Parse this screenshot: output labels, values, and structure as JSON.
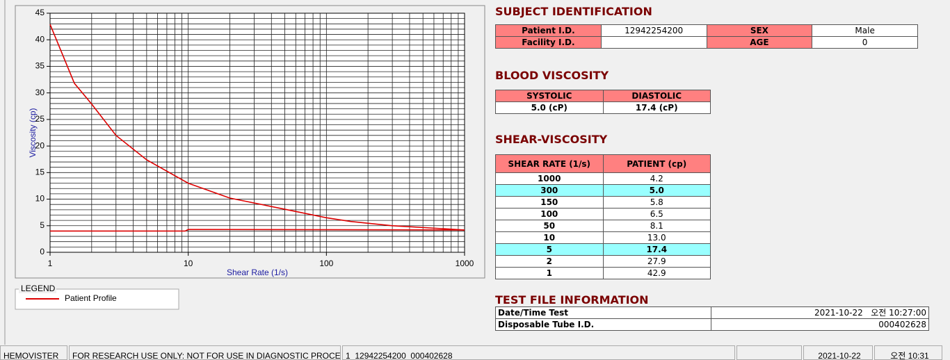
{
  "chart_data": {
    "type": "line",
    "x_label": "Shear Rate (1/s)",
    "y_label": "Viscosity (cp)",
    "xscale": "log",
    "xlim": [
      1,
      1000
    ],
    "xticks": [
      1,
      10,
      100,
      1000
    ],
    "ylim": [
      0,
      45
    ],
    "yticks": [
      0,
      5,
      10,
      15,
      20,
      25,
      30,
      35,
      40,
      45
    ],
    "grid": true,
    "minor_grid": true,
    "series": [
      {
        "name": "Patient Profile",
        "color": "#dd0000",
        "x": [
          1,
          1.5,
          2,
          3,
          5,
          10,
          20,
          50,
          100,
          150,
          300,
          1000
        ],
        "values": [
          42.9,
          31.8,
          27.9,
          22,
          17.4,
          13.0,
          10.2,
          8.1,
          6.5,
          5.8,
          5.0,
          4.2
        ]
      },
      {
        "color": "#dd0000",
        "x": [
          1,
          9.5,
          10,
          1000
        ],
        "values": [
          4.0,
          4.0,
          4.3,
          4.2
        ]
      }
    ]
  },
  "legend": {
    "title": "LEGEND"
  },
  "subject_identification": {
    "title": "SUBJECT IDENTIFICATION",
    "rows": [
      [
        "Patient I.D.",
        "12942254200",
        "SEX",
        "Male"
      ],
      [
        "Facility I.D.",
        null,
        "AGE",
        "0"
      ]
    ]
  },
  "blood_viscosity": {
    "title": "BLOOD VISCOSITY",
    "headers": [
      "SYSTOLIC",
      "DIASTOLIC"
    ],
    "values": [
      "5.0 (cP)",
      "17.4 (cP)"
    ]
  },
  "shear_viscosity": {
    "title": "SHEAR-VISCOSITY",
    "headers": [
      "SHEAR RATE (1/s)",
      "PATIENT (cp)"
    ],
    "rows": [
      [
        "1000",
        "4.2"
      ],
      [
        "300",
        "5.0"
      ],
      [
        "150",
        "5.8"
      ],
      [
        "100",
        "6.5"
      ],
      [
        "50",
        "8.1"
      ],
      [
        "10",
        "13.0"
      ],
      [
        "5",
        "17.4"
      ],
      [
        "2",
        "27.9"
      ],
      [
        "1",
        "42.9"
      ]
    ],
    "highlight_rows": [
      1,
      6
    ],
    "highlight_color": "#99ffff"
  },
  "test_file_information": {
    "title": "TEST FILE INFORMATION",
    "rows": [
      [
        "Date/Time Test",
        "2021-10-22   오전 10:27:00"
      ],
      [
        "Disposable Tube I.D.",
        "000402628"
      ]
    ]
  },
  "status_bar": [
    "HEMOVISTER",
    "FOR RESEARCH USE ONLY: NOT FOR USE IN DIAGNOSTIC PROCEDURES",
    "1  12942254200  000402628",
    null,
    "2021-10-22",
    "오전 10:31"
  ]
}
